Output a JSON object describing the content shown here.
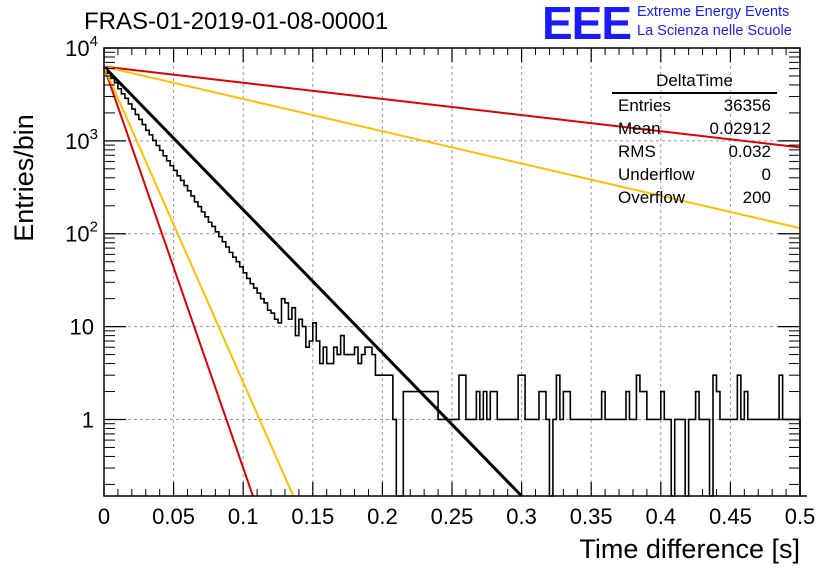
{
  "header": {
    "title": "FRAS-01-2019-01-08-00001",
    "logo": "EEE",
    "logo_line1": "Extreme Energy Events",
    "logo_line2": "La Scienza nelle Scuole"
  },
  "stats_box": {
    "name": "DeltaTime",
    "rows": [
      {
        "label": "Entries",
        "value": "36356"
      },
      {
        "label": "Mean",
        "value": "0.02912"
      },
      {
        "label": "RMS",
        "value": "0.032"
      },
      {
        "label": "Underflow",
        "value": "0"
      },
      {
        "label": "Overflow",
        "value": "200"
      }
    ]
  },
  "colors": {
    "histogram": "#000000",
    "fit": "#000000",
    "red_lines": "#e00000",
    "orange_lines": "#ffbf00",
    "grid": "#9a9a9a"
  },
  "chart_data": {
    "type": "line",
    "title": "FRAS-01-2019-01-08-00001",
    "xlabel": "Time difference [s]",
    "ylabel": "Entries/bin",
    "xlim": [
      0,
      0.5
    ],
    "ylim": [
      0.15,
      10000
    ],
    "yscale": "log",
    "grid": true,
    "x_ticks": [
      "0",
      "0.05",
      "0.1",
      "0.15",
      "0.2",
      "0.25",
      "0.3",
      "0.35",
      "0.4",
      "0.45",
      "0.5"
    ],
    "y_ticks": [
      {
        "value": 1,
        "label": "1"
      },
      {
        "value": 10,
        "label": "10"
      },
      {
        "value": 100,
        "label": "10^2"
      },
      {
        "value": 1000,
        "label": "10^3"
      },
      {
        "value": 10000,
        "label": "10^4"
      }
    ],
    "histogram": {
      "bin_width": 0.0025,
      "counts": [
        6150,
        5350,
        4720,
        4230,
        3640,
        3210,
        2870,
        2500,
        2200,
        1920,
        1700,
        1500,
        1300,
        1160,
        1010,
        890,
        790,
        690,
        610,
        540,
        480,
        420,
        375,
        330,
        290,
        255,
        220,
        196,
        172,
        152,
        133,
        120,
        105,
        93,
        82,
        72,
        63,
        56,
        50,
        44,
        38,
        33,
        29,
        26,
        23,
        20,
        18,
        15,
        14,
        12,
        11,
        20,
        18,
        12,
        16,
        8,
        12,
        10,
        6,
        7,
        11,
        7,
        4,
        6,
        4,
        4,
        6,
        5,
        8,
        5,
        5,
        5,
        6,
        4,
        5,
        6,
        6,
        5,
        3,
        3,
        3,
        3,
        3,
        1,
        0,
        0,
        2,
        2,
        2,
        2,
        2,
        2,
        2,
        2,
        2,
        2,
        1,
        1,
        1,
        1,
        1,
        1,
        3,
        3,
        1,
        1,
        1,
        2,
        1,
        2,
        1,
        2,
        2,
        1,
        1,
        1,
        1,
        1,
        1,
        3,
        3,
        1,
        1,
        1,
        1,
        2,
        2,
        1,
        0,
        1,
        3,
        1,
        2,
        2,
        1,
        1,
        1,
        1,
        1,
        1,
        1,
        1,
        1,
        2,
        1,
        1,
        1,
        1,
        1,
        1,
        2,
        1,
        1,
        3,
        2,
        2,
        1,
        1,
        1,
        1,
        2,
        1,
        1,
        0,
        1,
        1,
        1,
        0,
        1,
        1,
        2,
        1,
        1,
        1,
        0,
        3,
        2,
        1,
        1,
        1,
        1,
        1,
        3,
        1,
        2,
        1,
        1,
        1,
        1,
        1,
        1,
        1,
        1,
        1,
        3,
        1,
        1,
        1,
        1,
        1,
        0,
        0
      ]
    },
    "series": [
      {
        "values": [
          [
            0,
            6300
          ],
          [
            0.3,
            0.15
          ]
        ],
        "color": "#000000"
      },
      {
        "values": [
          [
            0,
            6300
          ],
          [
            0.5,
            850
          ]
        ],
        "color": "#e00000"
      },
      {
        "values": [
          [
            0,
            6300
          ],
          [
            0.107,
            0.15
          ]
        ],
        "color": "#e00000"
      },
      {
        "values": [
          [
            0,
            6300
          ],
          [
            0.5,
            115
          ]
        ],
        "color": "#ffbf00"
      },
      {
        "values": [
          [
            0,
            6300
          ],
          [
            0.136,
            0.15
          ]
        ],
        "color": "#ffbf00"
      }
    ]
  }
}
